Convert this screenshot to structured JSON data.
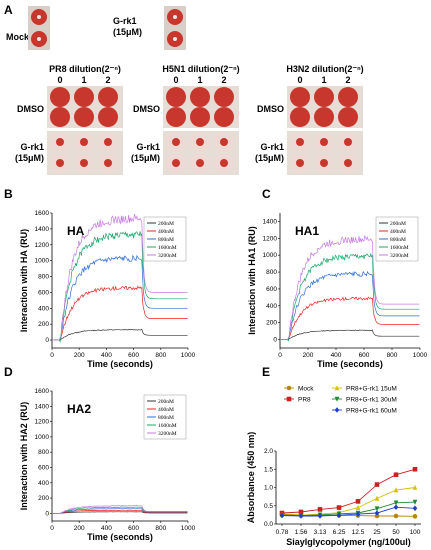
{
  "panel_labels": {
    "a": "A",
    "b": "B",
    "c": "C",
    "d": "D",
    "e": "E"
  },
  "panel_a": {
    "mock_label": "Mock",
    "grk1_top_label": "G-rk1\n(15μM)",
    "plates": [
      {
        "title": "PR8 dilution(2⁻ⁿ)",
        "cols": [
          "0",
          "1",
          "2"
        ],
        "row1": "DMSO",
        "row2": "G-rk1\n(15μM)"
      },
      {
        "title": "H5N1 dilution(2⁻ⁿ)",
        "cols": [
          "0",
          "1",
          "2"
        ],
        "row1": "DMSO",
        "row2": "G-rk1\n(15μM)"
      },
      {
        "title": "H3N2 dilution(2⁻ⁿ)",
        "cols": [
          "0",
          "1",
          "2"
        ],
        "row1": "DMSO",
        "row2": "G-rk1\n(15μM)"
      }
    ],
    "colors": {
      "well_red": "#c8372e",
      "plate_bg": "#d8cfc8"
    }
  },
  "chart_data": [
    {
      "panel": "B",
      "type": "line",
      "title": "HA",
      "xlabel": "Time (seconds)",
      "ylabel": "Interaction with HA (RU)",
      "xlim": [
        0,
        1000
      ],
      "ylim": [
        -100,
        1600
      ],
      "xticks": [
        0,
        200,
        400,
        600,
        800,
        1000
      ],
      "yticks": [
        0,
        200,
        400,
        600,
        800,
        1000,
        1200,
        1400,
        1600
      ],
      "legend": [
        "200nM",
        "400nM",
        "800nM",
        "1600nM",
        "3200nM"
      ],
      "series": [
        {
          "name": "200nM",
          "color": "#333333",
          "plateau": 130,
          "after": 60
        },
        {
          "name": "400nM",
          "color": "#e8211f",
          "plateau": 660,
          "after": 270
        },
        {
          "name": "800nM",
          "color": "#2f6fd6",
          "plateau": 1030,
          "after": 400
        },
        {
          "name": "1600nM",
          "color": "#18a86a",
          "plateau": 1330,
          "after": 520
        },
        {
          "name": "3200nM",
          "color": "#c57be0",
          "plateau": 1530,
          "after": 600
        }
      ]
    },
    {
      "panel": "C",
      "type": "line",
      "title": "HA1",
      "xlabel": "Time (seconds)",
      "ylabel": "Interaction with HA1 (RU)",
      "xlim": [
        0,
        1000
      ],
      "ylim": [
        -100,
        1500
      ],
      "xticks": [
        0,
        200,
        400,
        600,
        800,
        1000
      ],
      "yticks": [
        0,
        200,
        400,
        600,
        800,
        1000,
        1200,
        1400
      ],
      "legend": [
        "200nM",
        "400nM",
        "800nM",
        "1600nM",
        "3200nM"
      ],
      "series": [
        {
          "name": "200nM",
          "color": "#333333",
          "plateau": 110,
          "after": 40
        },
        {
          "name": "400nM",
          "color": "#e8211f",
          "plateau": 490,
          "after": 180
        },
        {
          "name": "800nM",
          "color": "#2f6fd6",
          "plateau": 780,
          "after": 280
        },
        {
          "name": "1600nM",
          "color": "#18a86a",
          "plateau": 990,
          "after": 360
        },
        {
          "name": "3200nM",
          "color": "#c57be0",
          "plateau": 1190,
          "after": 420
        }
      ]
    },
    {
      "panel": "D",
      "type": "line",
      "title": "HA2",
      "xlabel": "Time (seconds)",
      "ylabel": "Interaction with HA2 (RU)",
      "xlim": [
        0,
        1000
      ],
      "ylim": [
        -100,
        1600
      ],
      "xticks": [
        0,
        200,
        400,
        600,
        800,
        1000
      ],
      "yticks": [
        0,
        200,
        400,
        600,
        800,
        1000,
        1200,
        1400,
        1600
      ],
      "legend": [
        "200nM",
        "400nM",
        "800nM",
        "1600nM",
        "3200nM"
      ],
      "series": [
        {
          "name": "200nM",
          "color": "#333333",
          "plateau": 20,
          "after": 5
        },
        {
          "name": "400nM",
          "color": "#e8211f",
          "plateau": 40,
          "after": 10
        },
        {
          "name": "800nM",
          "color": "#2f6fd6",
          "plateau": 60,
          "after": 15
        },
        {
          "name": "1600nM",
          "color": "#18a86a",
          "plateau": 80,
          "after": 20
        },
        {
          "name": "3200nM",
          "color": "#c57be0",
          "plateau": 100,
          "after": 25
        }
      ]
    },
    {
      "panel": "E",
      "type": "line",
      "xlabel": "Siaylglycopolymer (ng/100ul)",
      "ylabel": "Absorbance (450 nm)",
      "categories": [
        "0.78",
        "1.56",
        "3.13",
        "6.25",
        "12.5",
        "25",
        "50",
        "100"
      ],
      "ylim": [
        0,
        2.0
      ],
      "yticks": [
        "0.0",
        "0.5",
        "1.0",
        "1.5",
        "2.0"
      ],
      "series": [
        {
          "name": "Mock",
          "color": "#b8860b",
          "marker": "circle",
          "values": [
            0.27,
            0.25,
            0.24,
            0.23,
            0.23,
            0.22,
            0.22,
            0.21
          ]
        },
        {
          "name": "PR8",
          "color": "#cc1f1f",
          "marker": "square",
          "values": [
            0.3,
            0.33,
            0.4,
            0.45,
            0.62,
            1.08,
            1.35,
            1.5
          ]
        },
        {
          "name": "PR8+G-rk1 15uM",
          "color": "#d4c400",
          "marker": "triangle-up",
          "values": [
            0.25,
            0.24,
            0.27,
            0.31,
            0.45,
            0.7,
            0.93,
            1.0
          ]
        },
        {
          "name": "PR8+G-rk1 30uM",
          "color": "#1f8a2f",
          "marker": "triangle-down",
          "values": [
            0.24,
            0.23,
            0.25,
            0.28,
            0.3,
            0.42,
            0.58,
            0.6
          ]
        },
        {
          "name": "PR8+G-rk1 60uM",
          "color": "#1f3fcc",
          "marker": "diamond",
          "values": [
            0.23,
            0.22,
            0.22,
            0.24,
            0.27,
            0.3,
            0.46,
            0.43
          ]
        }
      ]
    }
  ]
}
